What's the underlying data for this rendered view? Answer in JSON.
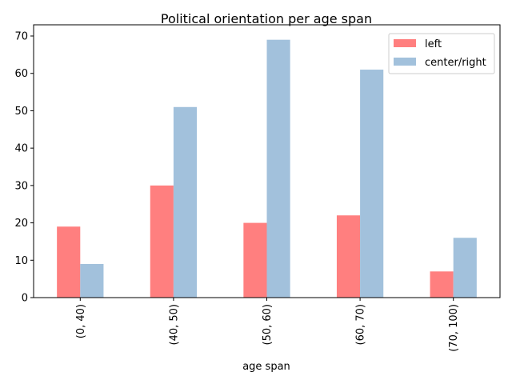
{
  "chart_data": {
    "type": "bar",
    "title": "Political orientation per age span",
    "xlabel": "age span",
    "ylabel": "",
    "categories": [
      "(0, 40)",
      "(40, 50)",
      "(50, 60)",
      "(60, 70)",
      "(70, 100)"
    ],
    "series": [
      {
        "name": "left",
        "values": [
          19,
          30,
          20,
          22,
          7
        ],
        "color": "#ff7f7f"
      },
      {
        "name": "center/right",
        "values": [
          9,
          51,
          69,
          61,
          16
        ],
        "color": "#a2c1dc"
      }
    ],
    "ylim": [
      0,
      73
    ],
    "yticks": [
      0,
      10,
      20,
      30,
      40,
      50,
      60,
      70
    ],
    "grid": false,
    "legend": "top-right",
    "x_tick_rotation": "vertical"
  }
}
